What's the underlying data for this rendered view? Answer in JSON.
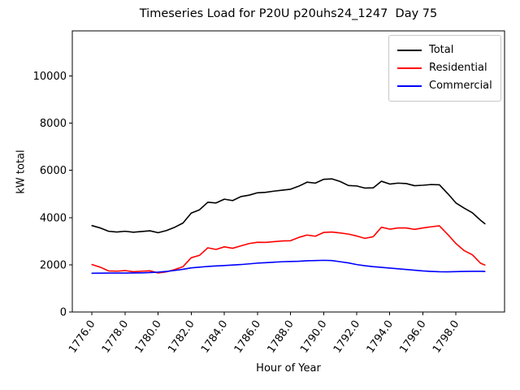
{
  "title": "Timeseries Load for P20U p20uhs24_1247  Day 75",
  "axes": {
    "xlabel": "Hour of Year",
    "ylabel": "kW total",
    "x_ticks": [
      "1776.0",
      "1778.0",
      "1780.0",
      "1782.0",
      "1784.0",
      "1786.0",
      "1788.0",
      "1790.0",
      "1792.0",
      "1794.0",
      "1796.0",
      "1798.0"
    ],
    "y_ticks": [
      "0",
      "2000",
      "4000",
      "6000",
      "8000",
      "10000"
    ]
  },
  "legend": {
    "items": [
      {
        "label": "Total",
        "color": "#000000"
      },
      {
        "label": "Residential",
        "color": "#ff0000"
      },
      {
        "label": "Commercial",
        "color": "#0000ff"
      }
    ]
  },
  "chart_data": {
    "type": "line",
    "title": "Timeseries Load for P20U p20uhs24_1247  Day 75",
    "xlabel": "Hour of Year",
    "ylabel": "kW total",
    "xlim": [
      1774.81,
      1800.94
    ],
    "ylim": [
      0,
      11910
    ],
    "x_tick_values": [
      1776,
      1778,
      1780,
      1782,
      1784,
      1786,
      1788,
      1790,
      1792,
      1794,
      1796,
      1798
    ],
    "y_tick_values": [
      0,
      2000,
      4000,
      6000,
      8000,
      10000
    ],
    "grid": false,
    "legend_position": "upper right",
    "hours": [
      1776.0,
      1776.5,
      1777.0,
      1777.5,
      1778.0,
      1778.5,
      1779.0,
      1779.5,
      1780.0,
      1780.5,
      1781.0,
      1781.5,
      1782.0,
      1782.5,
      1783.0,
      1783.5,
      1784.0,
      1784.5,
      1785.0,
      1785.5,
      1786.0,
      1786.5,
      1787.0,
      1787.5,
      1788.0,
      1788.5,
      1789.0,
      1789.5,
      1790.0,
      1790.5,
      1791.0,
      1791.5,
      1792.0,
      1792.5,
      1793.0,
      1793.5,
      1794.0,
      1794.5,
      1795.0,
      1795.5,
      1796.0,
      1796.5,
      1797.0,
      1797.5,
      1798.0,
      1798.5,
      1799.0,
      1799.5,
      1799.75
    ],
    "series": [
      {
        "name": "Total",
        "color": "#000000",
        "values": [
          3660,
          3560,
          3420,
          3390,
          3420,
          3380,
          3410,
          3440,
          3360,
          3450,
          3590,
          3770,
          4190,
          4330,
          4650,
          4620,
          4780,
          4720,
          4890,
          4950,
          5050,
          5070,
          5120,
          5160,
          5200,
          5330,
          5500,
          5460,
          5620,
          5640,
          5530,
          5360,
          5340,
          5250,
          5260,
          5540,
          5420,
          5460,
          5440,
          5350,
          5370,
          5400,
          5390,
          5020,
          4620,
          4400,
          4200,
          3880,
          3740
        ]
      },
      {
        "name": "Residential",
        "color": "#ff0000",
        "values": [
          2010,
          1900,
          1740,
          1730,
          1755,
          1705,
          1730,
          1745,
          1655,
          1700,
          1800,
          1920,
          2300,
          2400,
          2720,
          2650,
          2760,
          2700,
          2800,
          2900,
          2955,
          2950,
          2980,
          3010,
          3020,
          3160,
          3260,
          3210,
          3370,
          3390,
          3350,
          3300,
          3220,
          3120,
          3190,
          3590,
          3510,
          3560,
          3560,
          3500,
          3560,
          3610,
          3650,
          3290,
          2900,
          2600,
          2420,
          2060,
          1990
        ]
      },
      {
        "name": "Commercial",
        "color": "#0000ff",
        "values": [
          1640,
          1645,
          1650,
          1650,
          1650,
          1655,
          1660,
          1670,
          1690,
          1720,
          1760,
          1810,
          1870,
          1900,
          1930,
          1950,
          1970,
          1990,
          2010,
          2040,
          2070,
          2090,
          2110,
          2130,
          2140,
          2150,
          2170,
          2180,
          2190,
          2180,
          2130,
          2080,
          2010,
          1960,
          1920,
          1890,
          1860,
          1830,
          1800,
          1770,
          1740,
          1720,
          1705,
          1700,
          1710,
          1720,
          1725,
          1725,
          1720
        ]
      }
    ]
  }
}
